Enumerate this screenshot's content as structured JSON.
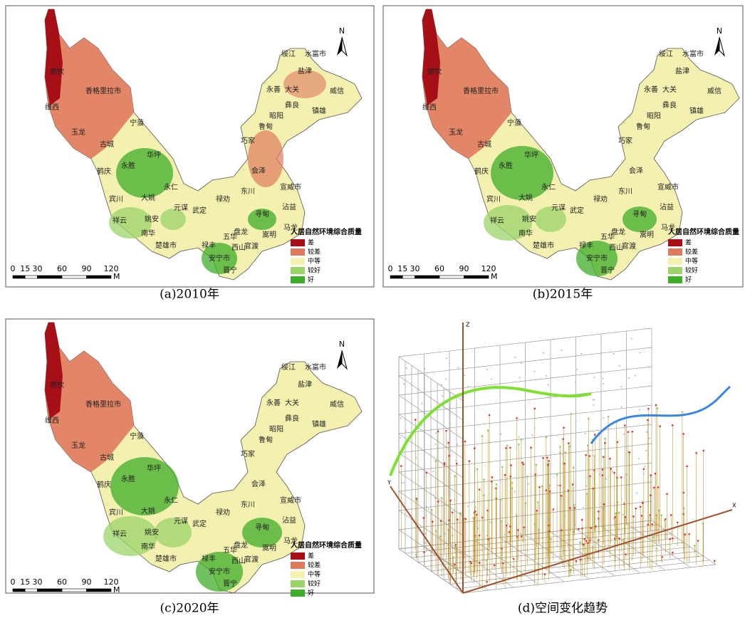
{
  "panels": [
    {
      "caption": "(a)2010年"
    },
    {
      "caption": "(b)2015年"
    },
    {
      "caption": "(c)2020年"
    },
    {
      "caption": "(d)空间变化趋势"
    }
  ],
  "map": {
    "north": "N",
    "places": [
      "德钦",
      "香格里拉市",
      "维西",
      "玉龙",
      "古城",
      "宁蒗",
      "华坪",
      "永胜",
      "鹤庆",
      "大姚",
      "永仁",
      "宾川",
      "祥云",
      "姚安",
      "南华",
      "楚雄市",
      "元谋",
      "武定",
      "禄劝",
      "东川",
      "会泽",
      "宣威市",
      "寻甸",
      "沾益",
      "马龙",
      "嵩明",
      "官渡",
      "五华",
      "盘龙",
      "西山",
      "禄丰",
      "安宁市",
      "晋宁",
      "巧家",
      "鲁甸",
      "昭阳",
      "彝良",
      "镇雄",
      "威信",
      "永善",
      "大关",
      "盐津",
      "绥江",
      "水富市"
    ],
    "legend": {
      "title": "人居自然环境综合质量",
      "classes": [
        {
          "label": "差",
          "color": "#a50f15"
        },
        {
          "label": "较差",
          "color": "#e07a5f"
        },
        {
          "label": "中等",
          "color": "#f3f0b0"
        },
        {
          "label": "较好",
          "color": "#9bd46a"
        },
        {
          "label": "好",
          "color": "#3fae2a"
        }
      ]
    },
    "scale": {
      "ticks": [
        0,
        15,
        30,
        60,
        90,
        120
      ],
      "unit": "M"
    }
  },
  "trend": {
    "axes": [
      "Z",
      "Y",
      "X"
    ]
  }
}
